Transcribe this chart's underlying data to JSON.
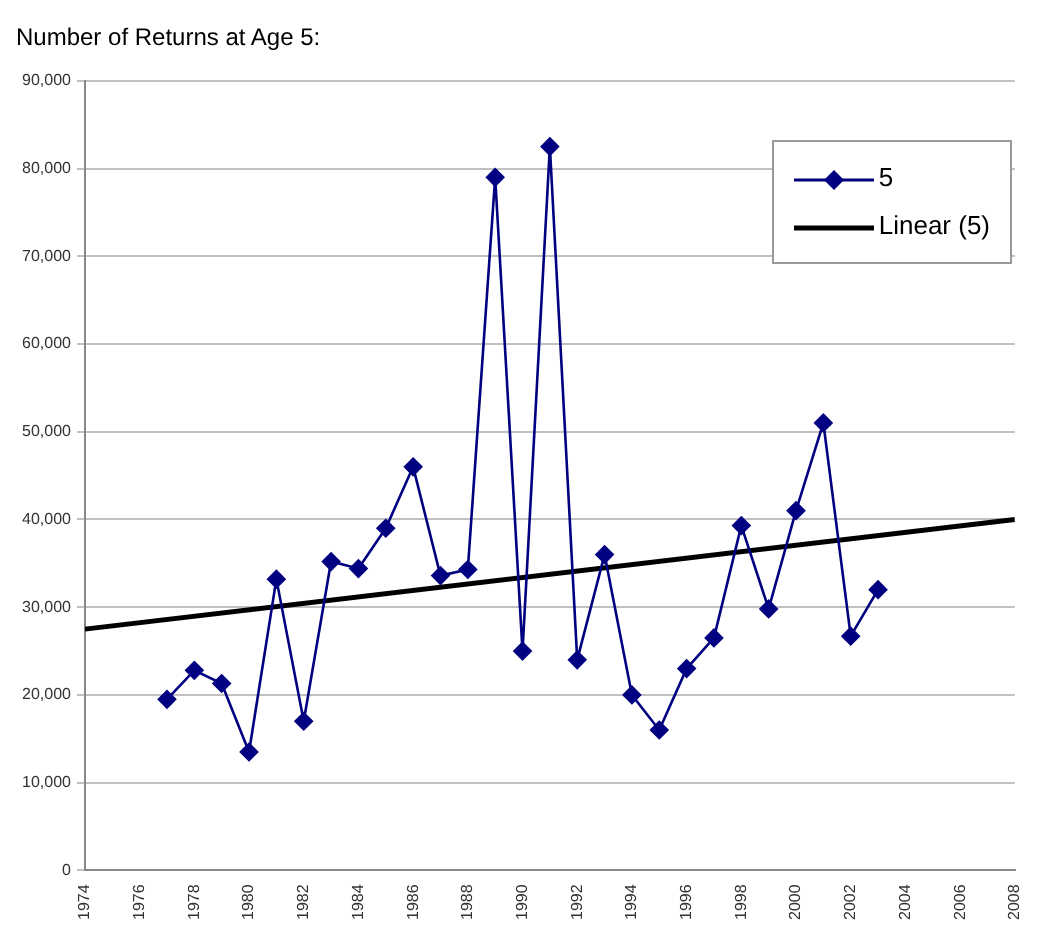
{
  "chart_data": {
    "type": "line",
    "title": "Number of Returns at Age 5:",
    "x": [
      1977,
      1978,
      1979,
      1980,
      1981,
      1982,
      1983,
      1984,
      1985,
      1986,
      1987,
      1988,
      1989,
      1990,
      1991,
      1992,
      1993,
      1994,
      1995,
      1996,
      1997,
      1998,
      1999,
      2000,
      2001,
      2002,
      2003
    ],
    "series": [
      {
        "name": "5",
        "color": "#000080",
        "marker": "diamond",
        "values": [
          19500,
          22800,
          21300,
          13500,
          33200,
          17000,
          35200,
          34400,
          39000,
          46000,
          33600,
          34300,
          79000,
          25000,
          82500,
          24000,
          36000,
          20000,
          16000,
          23000,
          26500,
          39300,
          29800,
          41000,
          51000,
          26700,
          32000
        ]
      },
      {
        "name": "Linear (5)",
        "color": "#000000",
        "marker": "none",
        "x": [
          1974,
          2008
        ],
        "values": [
          27500,
          40000
        ]
      }
    ],
    "xlim": [
      1974,
      2008
    ],
    "xticks": [
      1974,
      1976,
      1978,
      1980,
      1982,
      1984,
      1986,
      1988,
      1990,
      1992,
      1994,
      1996,
      1998,
      2000,
      2002,
      2004,
      2006,
      2008
    ],
    "ylim": [
      0,
      90000
    ],
    "yticks": [
      {
        "value": 0,
        "label": "0"
      },
      {
        "value": 10000,
        "label": "10,000"
      },
      {
        "value": 20000,
        "label": "20,000"
      },
      {
        "value": 30000,
        "label": "30,000"
      },
      {
        "value": 40000,
        "label": "40,000"
      },
      {
        "value": 50000,
        "label": "50,000"
      },
      {
        "value": 60000,
        "label": "60,000"
      },
      {
        "value": 70000,
        "label": "70,000"
      },
      {
        "value": 80000,
        "label": "80,000"
      },
      {
        "value": 90000,
        "label": "90,000"
      }
    ],
    "grid": "y",
    "legend": "top right",
    "line_style": "solid"
  }
}
